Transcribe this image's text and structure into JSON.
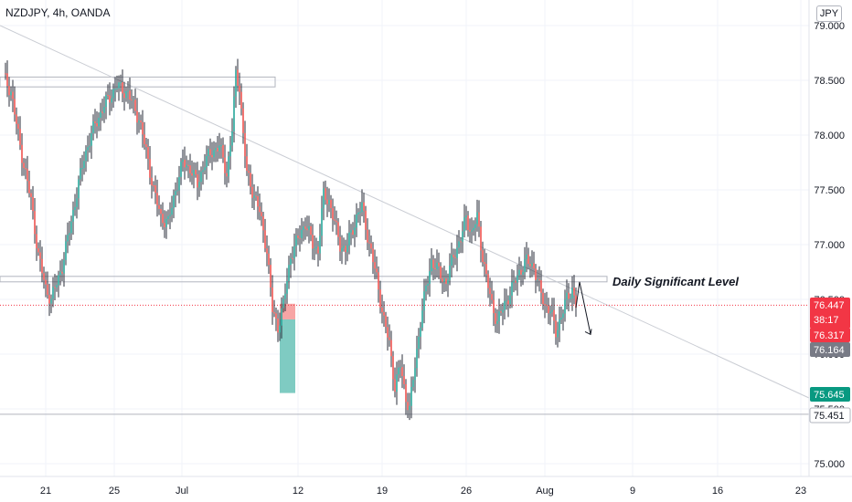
{
  "header": {
    "title": "NZDJPY, 4h, OANDA",
    "currency": "JPY"
  },
  "annotation": {
    "label": "Daily Significant Level"
  },
  "colors": {
    "up": "#26a69a",
    "down": "#ef5350",
    "grid": "#f0f3fa",
    "axis_text": "#131722",
    "current_price": "#f23645",
    "bid": "#787b86",
    "target": "#089981",
    "stop_zone": "#f7a5a5",
    "target_zone": "#7fcbc2"
  },
  "chart_data": {
    "type": "candlestick",
    "symbol": "NZDJPY",
    "timeframe": "4h",
    "source": "OANDA",
    "y_ticks": [
      "79.000",
      "78.500",
      "78.000",
      "77.500",
      "77.000",
      "76.500",
      "76.000",
      "75.500",
      "75.000"
    ],
    "ylim": [
      74.92,
      79.15
    ],
    "x_ticks": [
      "21",
      "25",
      "Jul",
      "12",
      "19",
      "26",
      "Aug",
      "9",
      "16",
      "23"
    ],
    "price_tags": [
      {
        "name": "current-price",
        "lines": [
          "76.447",
          "38:17"
        ],
        "value": 76.447
      },
      {
        "name": "entry-price",
        "lines": [
          "76.317"
        ],
        "value": 76.317
      },
      {
        "name": "bid-price",
        "lines": [
          "76.164"
        ],
        "value": 76.164
      },
      {
        "name": "target-price",
        "lines": [
          "75.645"
        ],
        "value": 75.645
      },
      {
        "name": "support-price",
        "lines": [
          "75.451"
        ],
        "value": 75.451
      }
    ],
    "levels": {
      "daily_significant_level": [
        76.66,
        76.71
      ],
      "upper_zone": [
        78.44,
        78.53
      ],
      "support": 75.451,
      "current": 76.447
    },
    "trendline": [
      [
        79.0,
        78.9
      ],
      [
        75.6,
        75.6
      ]
    ],
    "position": {
      "entry": 76.317,
      "stop": 76.46,
      "target": 75.645
    },
    "key_points": [
      [
        1,
        78.5
      ],
      [
        4,
        78.4
      ],
      [
        9,
        77.9
      ],
      [
        15,
        77.4
      ],
      [
        19,
        76.9
      ],
      [
        23,
        76.6
      ],
      [
        26,
        76.5
      ],
      [
        32,
        76.8
      ],
      [
        38,
        77.3
      ],
      [
        44,
        77.8
      ],
      [
        50,
        78.1
      ],
      [
        56,
        78.3
      ],
      [
        62,
        78.45
      ],
      [
        68,
        78.38
      ],
      [
        74,
        78.15
      ],
      [
        78,
        77.85
      ],
      [
        82,
        77.5
      ],
      [
        86,
        77.25
      ],
      [
        90,
        77.2
      ],
      [
        94,
        77.5
      ],
      [
        98,
        77.75
      ],
      [
        102,
        77.7
      ],
      [
        106,
        77.55
      ],
      [
        110,
        77.75
      ],
      [
        114,
        77.85
      ],
      [
        118,
        77.9
      ],
      [
        122,
        77.65
      ],
      [
        125,
        78.05
      ],
      [
        127,
        78.55
      ],
      [
        129,
        78.45
      ],
      [
        131,
        78.0
      ],
      [
        133,
        77.65
      ],
      [
        136,
        77.5
      ],
      [
        140,
        77.3
      ],
      [
        144,
        76.95
      ],
      [
        147,
        76.4
      ],
      [
        150,
        76.25
      ],
      [
        153,
        76.45
      ],
      [
        157,
        76.9
      ],
      [
        161,
        77.05
      ],
      [
        165,
        77.2
      ],
      [
        169,
        77.0
      ],
      [
        172,
        76.95
      ],
      [
        175,
        77.45
      ],
      [
        178,
        77.4
      ],
      [
        181,
        77.2
      ],
      [
        184,
        77.0
      ],
      [
        187,
        76.95
      ],
      [
        190,
        77.1
      ],
      [
        193,
        77.25
      ],
      [
        196,
        77.35
      ],
      [
        200,
        77.0
      ],
      [
        204,
        76.7
      ],
      [
        208,
        76.3
      ],
      [
        211,
        76.1
      ],
      [
        214,
        75.7
      ],
      [
        217,
        75.9
      ],
      [
        220,
        75.6
      ],
      [
        222,
        75.5
      ],
      [
        225,
        75.9
      ],
      [
        228,
        76.3
      ],
      [
        231,
        76.6
      ],
      [
        234,
        76.85
      ],
      [
        238,
        76.75
      ],
      [
        242,
        76.65
      ],
      [
        246,
        76.9
      ],
      [
        250,
        77.05
      ],
      [
        253,
        77.25
      ],
      [
        256,
        77.1
      ],
      [
        259,
        77.25
      ],
      [
        261,
        77.0
      ],
      [
        264,
        76.7
      ],
      [
        267,
        76.45
      ],
      [
        270,
        76.3
      ],
      [
        274,
        76.45
      ],
      [
        278,
        76.6
      ],
      [
        282,
        76.75
      ],
      [
        286,
        76.85
      ],
      [
        290,
        76.8
      ],
      [
        293,
        76.6
      ],
      [
        296,
        76.45
      ],
      [
        299,
        76.4
      ],
      [
        302,
        76.2
      ],
      [
        305,
        76.35
      ],
      [
        308,
        76.5
      ],
      [
        311,
        76.6
      ],
      [
        313,
        76.45
      ]
    ]
  }
}
